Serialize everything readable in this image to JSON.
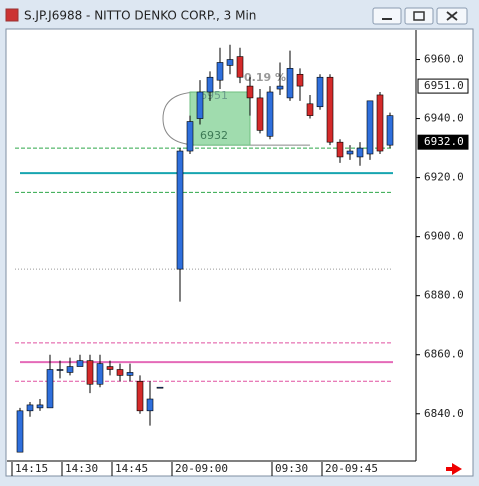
{
  "title": "S.JP.J6988 - NITTO DENKO CORP., 3 Min",
  "chart_data": {
    "type": "candlestick",
    "categories": [
      "14:15",
      null,
      null,
      null,
      null,
      "14:30",
      null,
      null,
      null,
      null,
      "14:45",
      null,
      null,
      null,
      null,
      "20-09:00",
      null,
      null,
      null,
      null,
      null,
      null,
      null,
      null,
      null,
      "09:30",
      null,
      null,
      null,
      null,
      "20-09:45",
      null,
      null,
      null,
      null,
      null,
      null
    ],
    "open": [
      6827,
      6841,
      6842,
      6842,
      6855,
      6854,
      6856,
      6858,
      6850,
      6856,
      6855,
      6853,
      6851,
      6841,
      6849,
      6889,
      6929,
      6940,
      6949,
      6953,
      6958,
      6961,
      6951,
      6947,
      6934,
      6950,
      6947,
      6955,
      6945,
      6944,
      6954,
      6932,
      6928,
      6927,
      6928,
      6948,
      6931
    ],
    "high": [
      6842,
      6844,
      6845,
      6860,
      6858,
      6859,
      6860,
      6860,
      6860,
      6858,
      6857,
      6857,
      6853,
      6851,
      6849,
      6930,
      6941,
      6953,
      6956,
      6964,
      6965,
      6964,
      6954,
      6950,
      6951,
      6959,
      6963,
      6957,
      6948,
      6955,
      6955,
      6933,
      6931,
      6932,
      6946,
      6949,
      6942
    ],
    "low": [
      6827,
      6839,
      6841,
      6842,
      6852,
      6853,
      6856,
      6847,
      6849,
      6853,
      6851,
      6851,
      6840,
      6836,
      6849,
      6878,
      6928,
      6938,
      6946,
      6950,
      6955,
      6952,
      6941,
      6935,
      6933,
      6948,
      6946,
      6946,
      6940,
      6943,
      6931,
      6925,
      6926,
      6924,
      6926,
      6928,
      6930
    ],
    "close": [
      6841,
      6843,
      6843,
      6855,
      6855,
      6856,
      6858,
      6850,
      6857,
      6855,
      6853,
      6854,
      6841,
      6845,
      6849,
      6929,
      6939,
      6949,
      6954,
      6959,
      6960,
      6954,
      6947,
      6936,
      6949,
      6951,
      6957,
      6951,
      6941,
      6954,
      6932,
      6927,
      6929,
      6930,
      6946,
      6929,
      6941
    ],
    "up_color": "#2f6fdc",
    "down_color": "#d42a2a",
    "ylim": [
      6824,
      6970
    ],
    "yticks": [
      {
        "value": 6960,
        "label": "6960.0"
      },
      {
        "value": 6940,
        "label": "6940.0"
      },
      {
        "value": 6920,
        "label": "6920.0"
      },
      {
        "value": 6900,
        "label": "6900.0"
      },
      {
        "value": 6880,
        "label": "6880.0"
      },
      {
        "value": 6860,
        "label": "6860.0"
      },
      {
        "value": 6840,
        "label": "6840.0"
      }
    ],
    "levels": [
      {
        "value": 6930,
        "color": "#2ea84a",
        "style": "dashed"
      },
      {
        "value": 6915,
        "color": "#2ea84a",
        "style": "dashed"
      },
      {
        "value": 6921.5,
        "color": "#17a5b0",
        "style": "solid"
      },
      {
        "value": 6889,
        "color": "#999999",
        "style": "dotted"
      },
      {
        "value": 6864,
        "color": "#e050a0",
        "style": "dashed"
      },
      {
        "value": 6857.5,
        "color": "#e46ab8",
        "style": "solid"
      },
      {
        "value": 6851,
        "color": "#e050a0",
        "style": "dashed"
      }
    ],
    "zone": {
      "from": 6931,
      "to": 6949,
      "color": "#8fd6a0",
      "labels": [
        "6951",
        "6932"
      ]
    },
    "annotation": "0.19 %",
    "price_markers": [
      {
        "value": 6951,
        "label": "6951.0"
      },
      {
        "value": 6932,
        "label": "6932.0"
      }
    ]
  }
}
